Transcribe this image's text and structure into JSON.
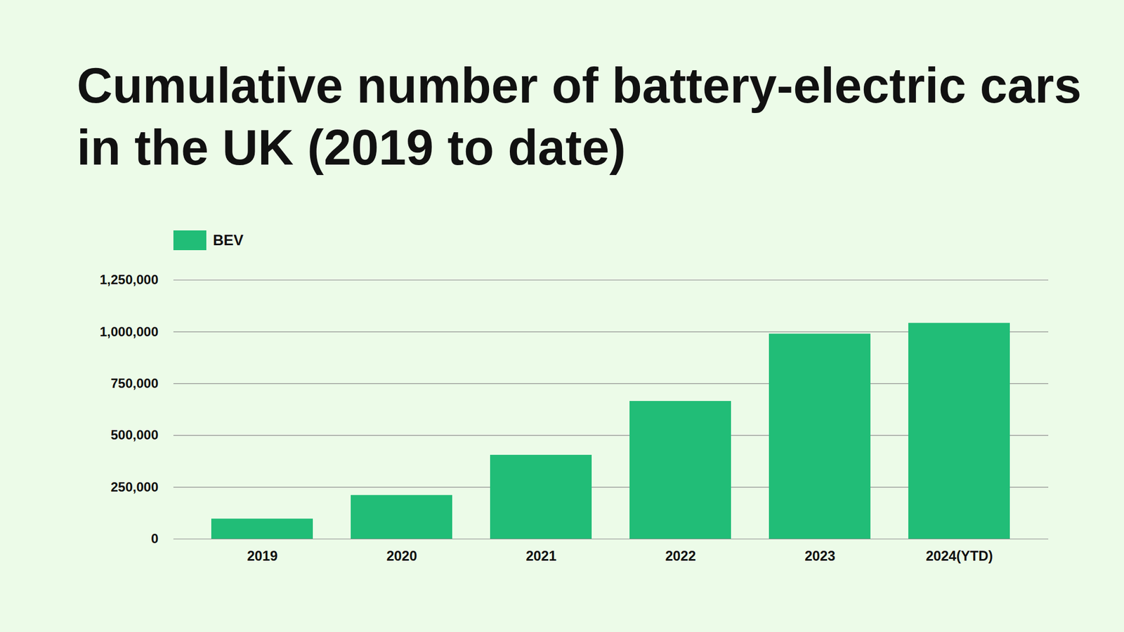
{
  "chart_data": {
    "type": "bar",
    "title": "Cumulative number of battery-electric cars in the UK (2019 to date)",
    "categories": [
      "2019",
      "2020",
      "2021",
      "2022",
      "2023",
      "2024(YTD)"
    ],
    "series": [
      {
        "name": "BEV",
        "color": "#21bd77",
        "values": [
          97000,
          211000,
          405000,
          665000,
          990000,
          1042000
        ]
      }
    ],
    "ylim": [
      0,
      1250000
    ],
    "yticks": [
      0,
      {
        "value": 250000,
        "label": "250,000"
      },
      {
        "value": 500000,
        "label": "500,000"
      },
      {
        "value": 750000,
        "label": "750,000"
      },
      {
        "value": 1000000,
        "label": "1,000,000"
      },
      {
        "value": 1250000,
        "label": "1,250,000"
      }
    ],
    "grid": true,
    "legend": "top-left"
  }
}
